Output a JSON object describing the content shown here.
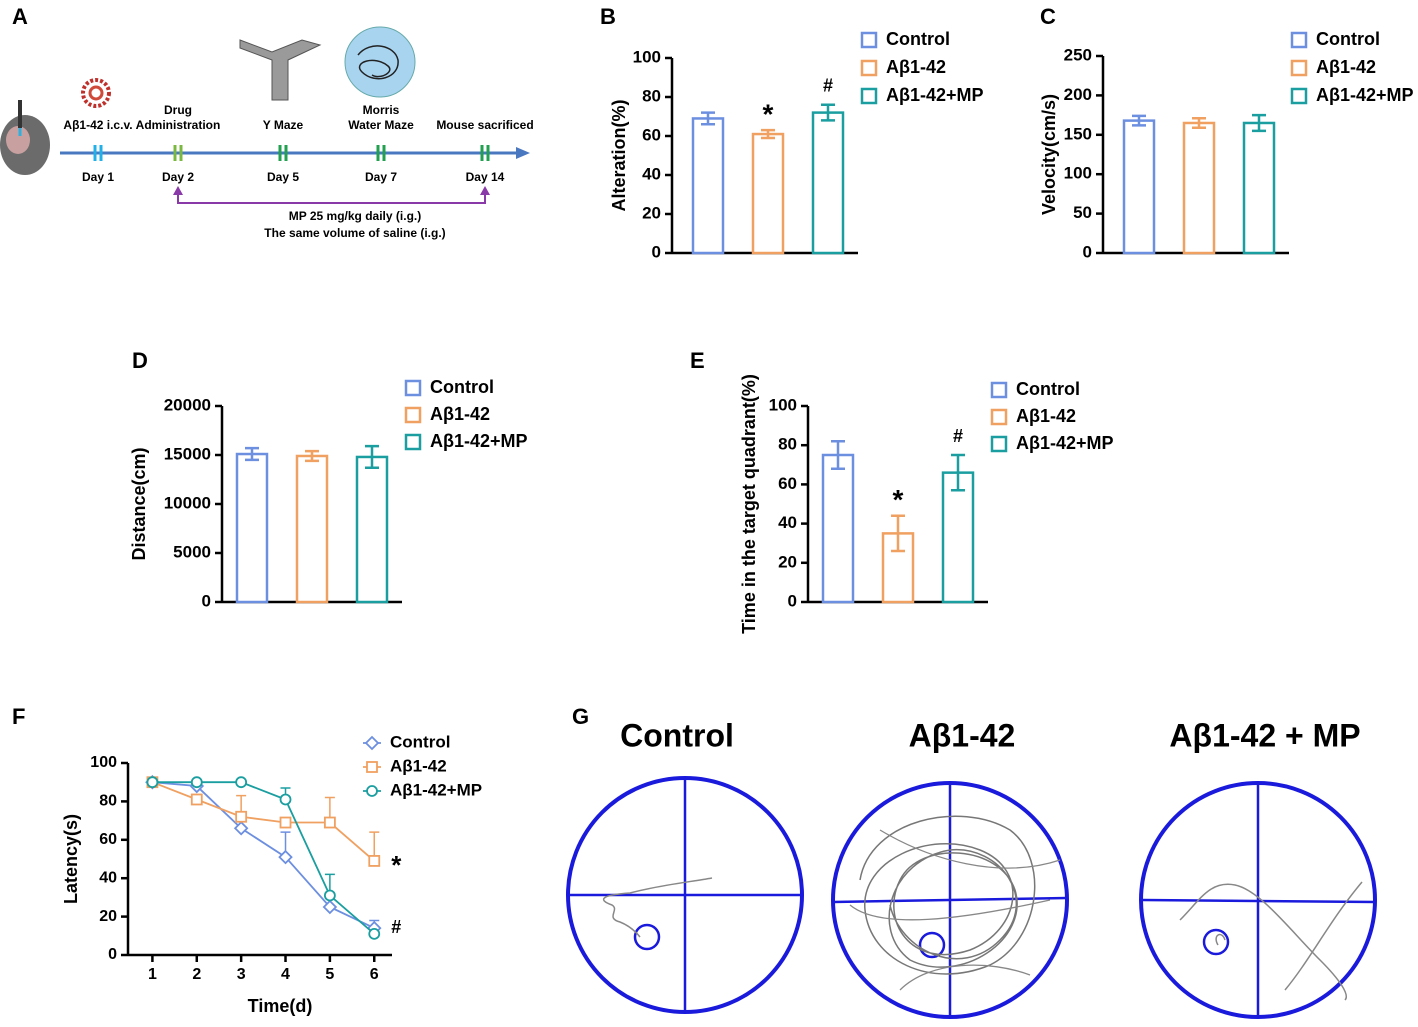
{
  "panel_labels": [
    "A",
    "B",
    "C",
    "D",
    "E",
    "F",
    "G"
  ],
  "timeline": {
    "days": [
      "Day 1",
      "Day 2",
      "Day 5",
      "Day 7",
      "Day 14"
    ],
    "events": [
      [
        "Aβ1-42 i.c.v."
      ],
      [
        "Drug",
        "Administration"
      ],
      [
        "Y Maze"
      ],
      [
        "Morris",
        "Water Maze"
      ],
      [
        "Mouse sacrificed"
      ]
    ],
    "regimen": [
      "MP 25 mg/kg daily (i.g.)",
      "The same volume of saline (i.g.)"
    ]
  },
  "chart_data": [
    {
      "type": "bar",
      "ylabel": "Alteration(%)",
      "categories": [
        "Control",
        "Aβ1-42",
        "Aβ1-42+MP"
      ],
      "values": [
        69,
        61,
        72
      ],
      "errors": [
        3,
        2,
        4
      ],
      "colors": [
        "#6d8fe0",
        "#f0a060",
        "#1a9ea0"
      ],
      "annotations": [
        null,
        "*",
        "#"
      ],
      "ylim": [
        0,
        100
      ],
      "yticks": [
        0,
        20,
        40,
        60,
        80,
        100
      ],
      "grid": false
    },
    {
      "type": "bar",
      "ylabel": "Velocity(cm/s)",
      "categories": [
        "Control",
        "Aβ1-42",
        "Aβ1-42+MP"
      ],
      "values": [
        168,
        165,
        165
      ],
      "errors": [
        6,
        6,
        10
      ],
      "colors": [
        "#6d8fe0",
        "#f0a060",
        "#1a9ea0"
      ],
      "annotations": [
        null,
        null,
        null
      ],
      "ylim": [
        0,
        250
      ],
      "yticks": [
        0,
        50,
        100,
        150,
        200,
        250
      ],
      "grid": false
    },
    {
      "type": "bar",
      "ylabel": "Distance(cm)",
      "categories": [
        "Control",
        "Aβ1-42",
        "Aβ1-42+MP"
      ],
      "values": [
        15100,
        14900,
        14800
      ],
      "errors": [
        600,
        500,
        1100
      ],
      "colors": [
        "#6d8fe0",
        "#f0a060",
        "#1a9ea0"
      ],
      "annotations": [
        null,
        null,
        null
      ],
      "ylim": [
        0,
        20000
      ],
      "yticks": [
        0,
        5000,
        10000,
        15000,
        20000
      ],
      "grid": false
    },
    {
      "type": "bar",
      "ylabel": "Time in the target quadrant(%)",
      "categories": [
        "Control",
        "Aβ1-42",
        "Aβ1-42+MP"
      ],
      "values": [
        75,
        35,
        66
      ],
      "errors": [
        7,
        9,
        9
      ],
      "colors": [
        "#6d8fe0",
        "#f0a060",
        "#1a9ea0"
      ],
      "annotations": [
        null,
        "*",
        "#"
      ],
      "ylim": [
        0,
        100
      ],
      "yticks": [
        0,
        20,
        40,
        60,
        80,
        100
      ],
      "grid": false
    },
    {
      "type": "line",
      "xlabel": "Time(d)",
      "ylabel": "Latency(s)",
      "x": [
        1,
        2,
        3,
        4,
        5,
        6
      ],
      "series": [
        {
          "name": "Control",
          "color": "#6d8fe0",
          "marker": "diamond",
          "values": [
            90,
            88,
            66,
            51,
            25,
            14
          ],
          "errors": [
            0,
            0,
            0,
            13,
            0,
            4
          ],
          "annotation": "#"
        },
        {
          "name": "Aβ1-42",
          "color": "#f0a060",
          "marker": "square",
          "values": [
            90,
            81,
            72,
            69,
            69,
            49
          ],
          "errors": [
            0,
            0,
            11,
            0,
            13,
            15
          ],
          "annotation": "*"
        },
        {
          "name": "Aβ1-42+MP",
          "color": "#1a9ea0",
          "marker": "circle",
          "values": [
            90,
            90,
            90,
            81,
            31,
            11
          ],
          "errors": [
            0,
            0,
            0,
            6,
            11,
            0
          ],
          "annotation": null
        }
      ],
      "xlim": [
        0.45,
        6.4
      ],
      "xticks": [
        1,
        2,
        3,
        4,
        5,
        6
      ],
      "ylim": [
        0,
        100
      ],
      "yticks": [
        0,
        20,
        40,
        60,
        80,
        100
      ],
      "grid": false
    }
  ],
  "paths": {
    "titles": [
      "Control",
      "Aβ1-42",
      "Aβ1-42 + MP"
    ]
  }
}
